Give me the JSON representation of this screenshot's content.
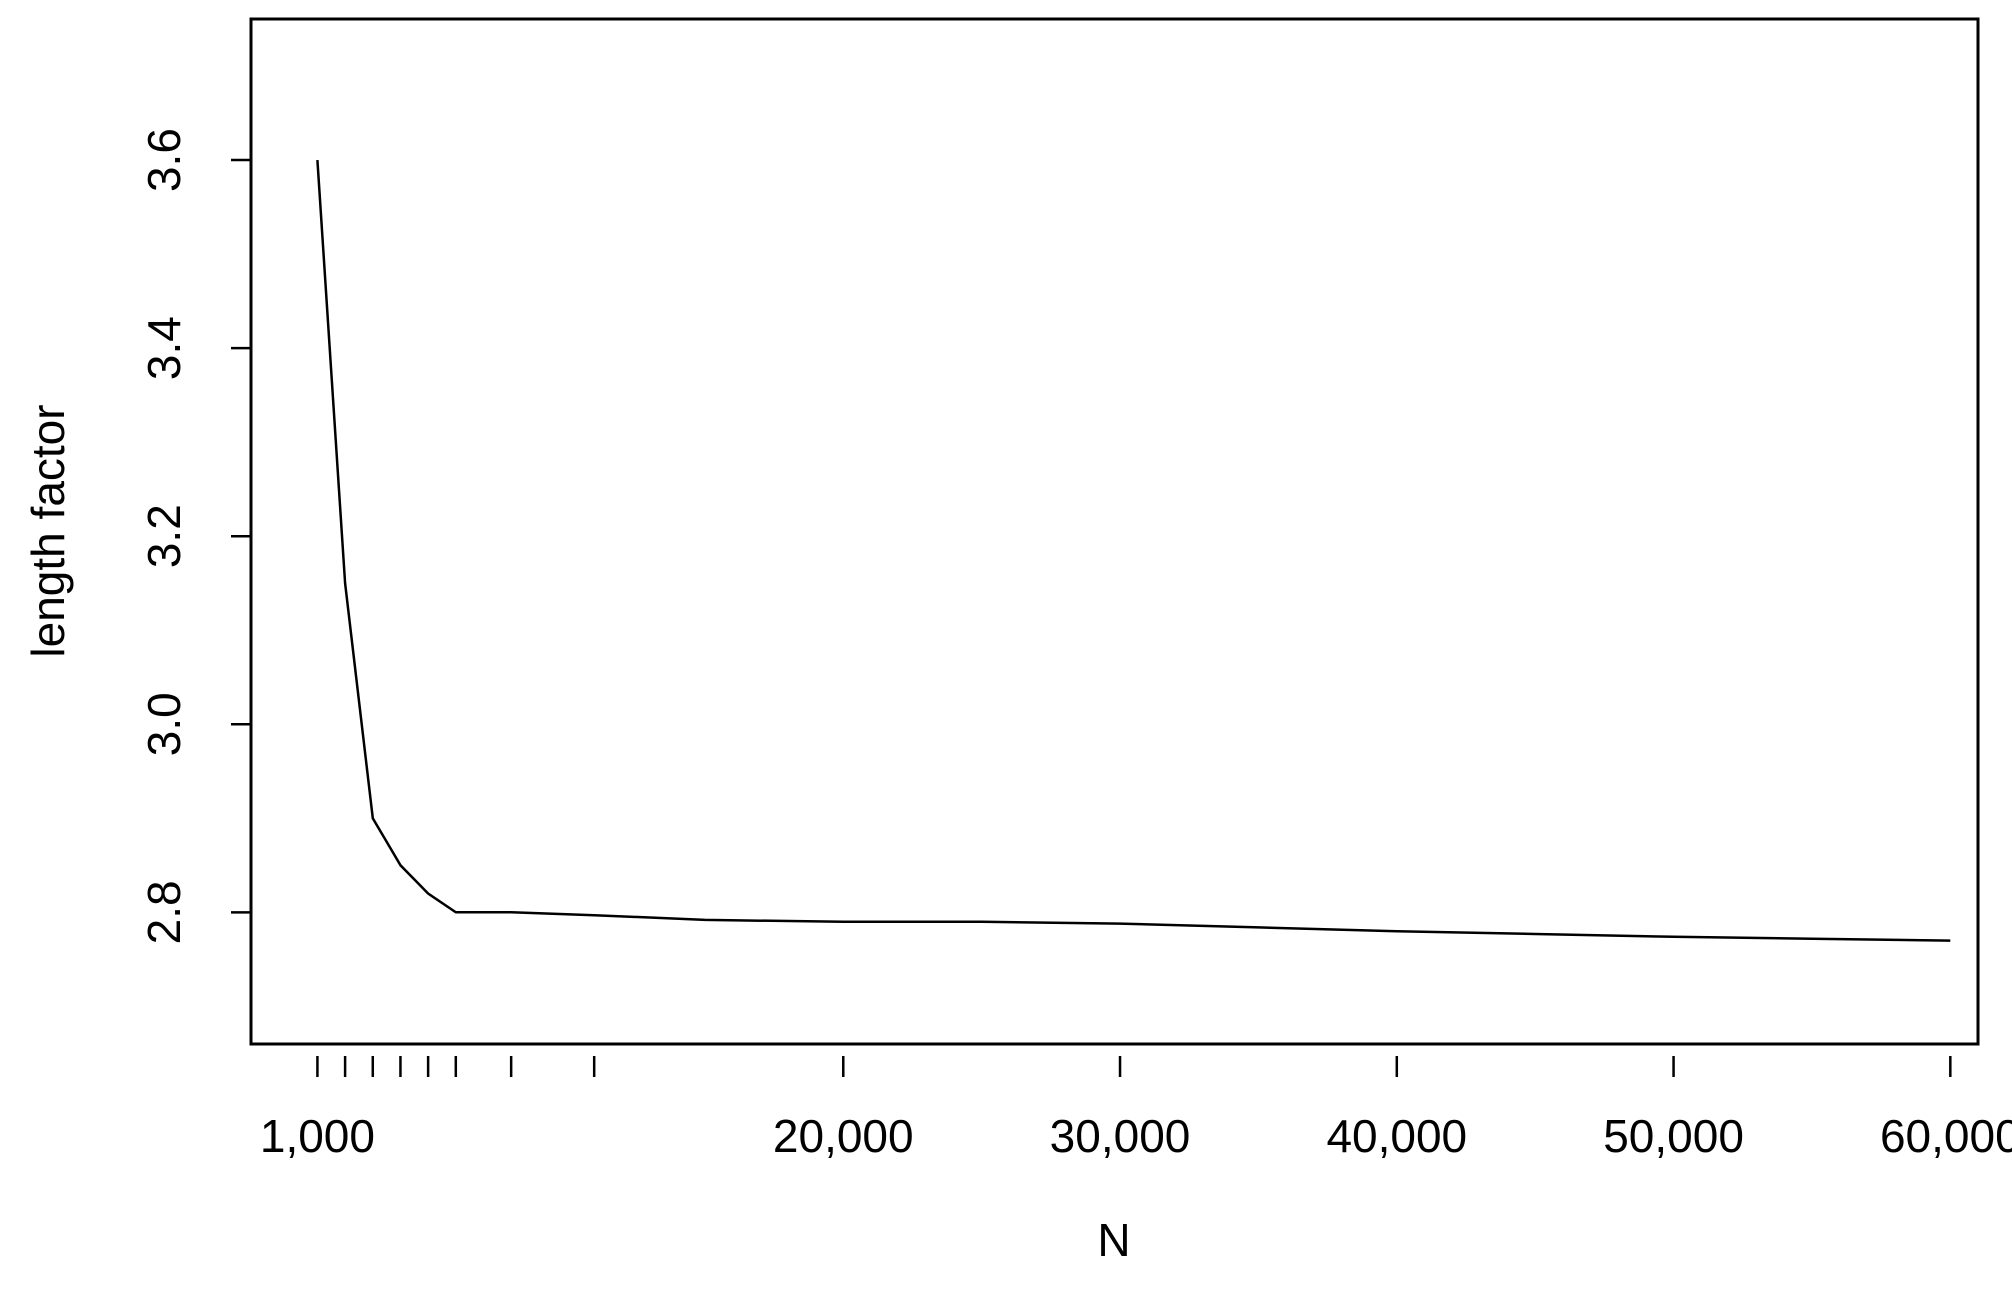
{
  "chart_data": {
    "type": "line",
    "title": "",
    "xlabel": "N",
    "ylabel": "length factor",
    "x": [
      1000,
      2000,
      3000,
      4000,
      5000,
      6000,
      8000,
      11000,
      15000,
      20000,
      25000,
      30000,
      35000,
      40000,
      45000,
      50000,
      55000,
      60000
    ],
    "series": [
      {
        "values": [
          3.6,
          3.15,
          2.9,
          2.85,
          2.82,
          2.8,
          2.8,
          2.797,
          2.792,
          2.79,
          2.79,
          2.788,
          2.784,
          2.78,
          2.777,
          2.774,
          2.772,
          2.77
        ]
      }
    ],
    "xlim": [
      -1400,
      61000
    ],
    "ylim": [
      2.66,
      3.75
    ],
    "x_ticks": [
      1000,
      2000,
      3000,
      4000,
      5000,
      6000,
      8000,
      11000,
      20000,
      30000,
      40000,
      50000,
      60000
    ],
    "x_tick_labels": [
      {
        "value": 1000,
        "label": "1,000"
      },
      {
        "value": 20000,
        "label": "20,000"
      },
      {
        "value": 30000,
        "label": "30,000"
      },
      {
        "value": 40000,
        "label": "40,000"
      },
      {
        "value": 50000,
        "label": "50,000"
      },
      {
        "value": 60000,
        "label": "60,000"
      }
    ],
    "y_ticks": [
      2.8,
      3.0,
      3.2,
      3.4,
      3.6
    ],
    "y_tick_labels": [
      "2.8",
      "3.0",
      "3.2",
      "3.4",
      "3.6"
    ],
    "grid": false,
    "legend": "none",
    "line_color": "#000000"
  }
}
